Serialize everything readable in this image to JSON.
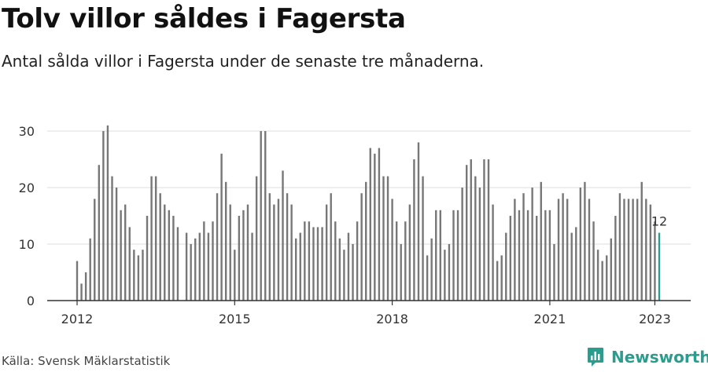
{
  "header": {
    "title": "Tolv villor såldes i Fagersta",
    "subtitle": "Antal sålda villor i Fagersta under de senaste tre månaderna."
  },
  "footer": {
    "source": "Källa: Svensk Mäklarstatistik",
    "brand": "Newsworthy"
  },
  "colors": {
    "bar": "#777777",
    "highlight": "#2a9d8f",
    "grid": "#dddddd",
    "axis": "#333333"
  },
  "chart_data": {
    "type": "bar",
    "x_start": "2012-01",
    "x_end": "2023-01",
    "xticks": [
      "2012",
      "2015",
      "2018",
      "2021",
      "2023"
    ],
    "yticks": [
      0,
      10,
      20,
      30
    ],
    "ylim": [
      0,
      30
    ],
    "highlight_label": "12",
    "values": [
      7,
      3,
      5,
      11,
      18,
      24,
      30,
      31,
      22,
      20,
      16,
      17,
      13,
      9,
      8,
      9,
      15,
      22,
      22,
      19,
      17,
      16,
      15,
      13,
      null,
      12,
      10,
      11,
      12,
      14,
      12,
      14,
      19,
      26,
      21,
      17,
      9,
      15,
      16,
      17,
      12,
      22,
      30,
      30,
      19,
      17,
      18,
      23,
      19,
      17,
      11,
      12,
      14,
      14,
      13,
      13,
      13,
      17,
      19,
      14,
      11,
      9,
      12,
      10,
      14,
      19,
      21,
      27,
      26,
      27,
      22,
      22,
      18,
      14,
      10,
      14,
      17,
      25,
      28,
      22,
      8,
      11,
      16,
      16,
      9,
      10,
      16,
      16,
      20,
      24,
      25,
      22,
      20,
      25,
      25,
      17,
      7,
      8,
      12,
      15,
      18,
      16,
      19,
      16,
      20,
      15,
      21,
      16,
      16,
      10,
      18,
      19,
      18,
      12,
      13,
      20,
      21,
      18,
      14,
      9,
      7,
      8,
      11,
      15,
      19,
      18,
      18,
      18,
      18,
      21,
      18,
      17,
      14,
      12
    ]
  }
}
